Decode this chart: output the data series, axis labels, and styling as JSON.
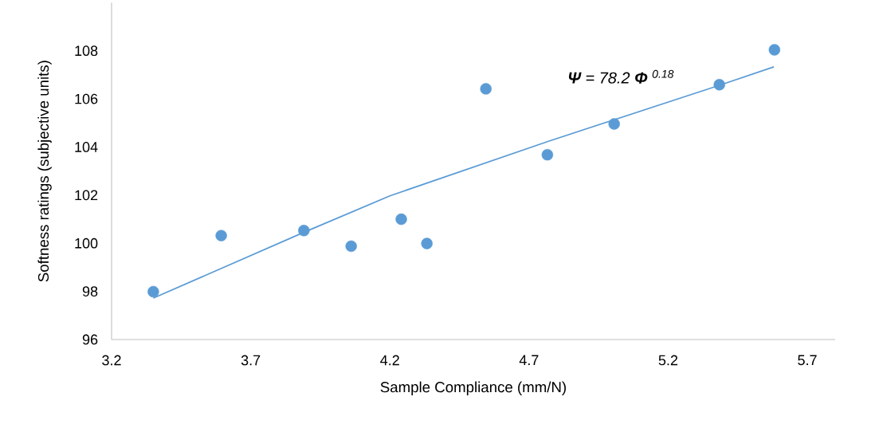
{
  "chart_data": {
    "type": "scatter",
    "xlabel": "Sample Compliance (mm/N)",
    "ylabel": "Softness ratings (subjective units)",
    "annotations": [
      "**Ψ** = 78.2 **Φ** $^{0.18}$"
    ],
    "xlim": [
      3.2,
      5.8
    ],
    "xticks": [
      3.2,
      3.7,
      4.2,
      4.7,
      5.2,
      5.7
    ],
    "ylim": [
      96,
      110
    ],
    "yticks": [
      96,
      98,
      100,
      102,
      104,
      106,
      108
    ],
    "grid": false,
    "series": [
      {
        "marker": "circle",
        "color": "#5b9bd5",
        "x": [
          3.35,
          3.594,
          3.891,
          4.061,
          4.241,
          4.333,
          4.545,
          4.766,
          5.006,
          5.384,
          5.582
        ],
        "values": [
          97.99,
          100.32,
          100.53,
          99.88,
          101.0,
          99.99,
          106.42,
          103.68,
          104.96,
          106.59,
          108.04
        ]
      },
      {
        "type": "line",
        "color": "#5b9bd5",
        "marker": "none",
        "line_style": "solid",
        "x": [
          3.35,
          3.89,
          4.2,
          4.77,
          5.38,
          5.58
        ],
        "values": [
          97.72,
          100.45,
          101.97,
          104.24,
          106.55,
          107.33
        ]
      }
    ]
  }
}
